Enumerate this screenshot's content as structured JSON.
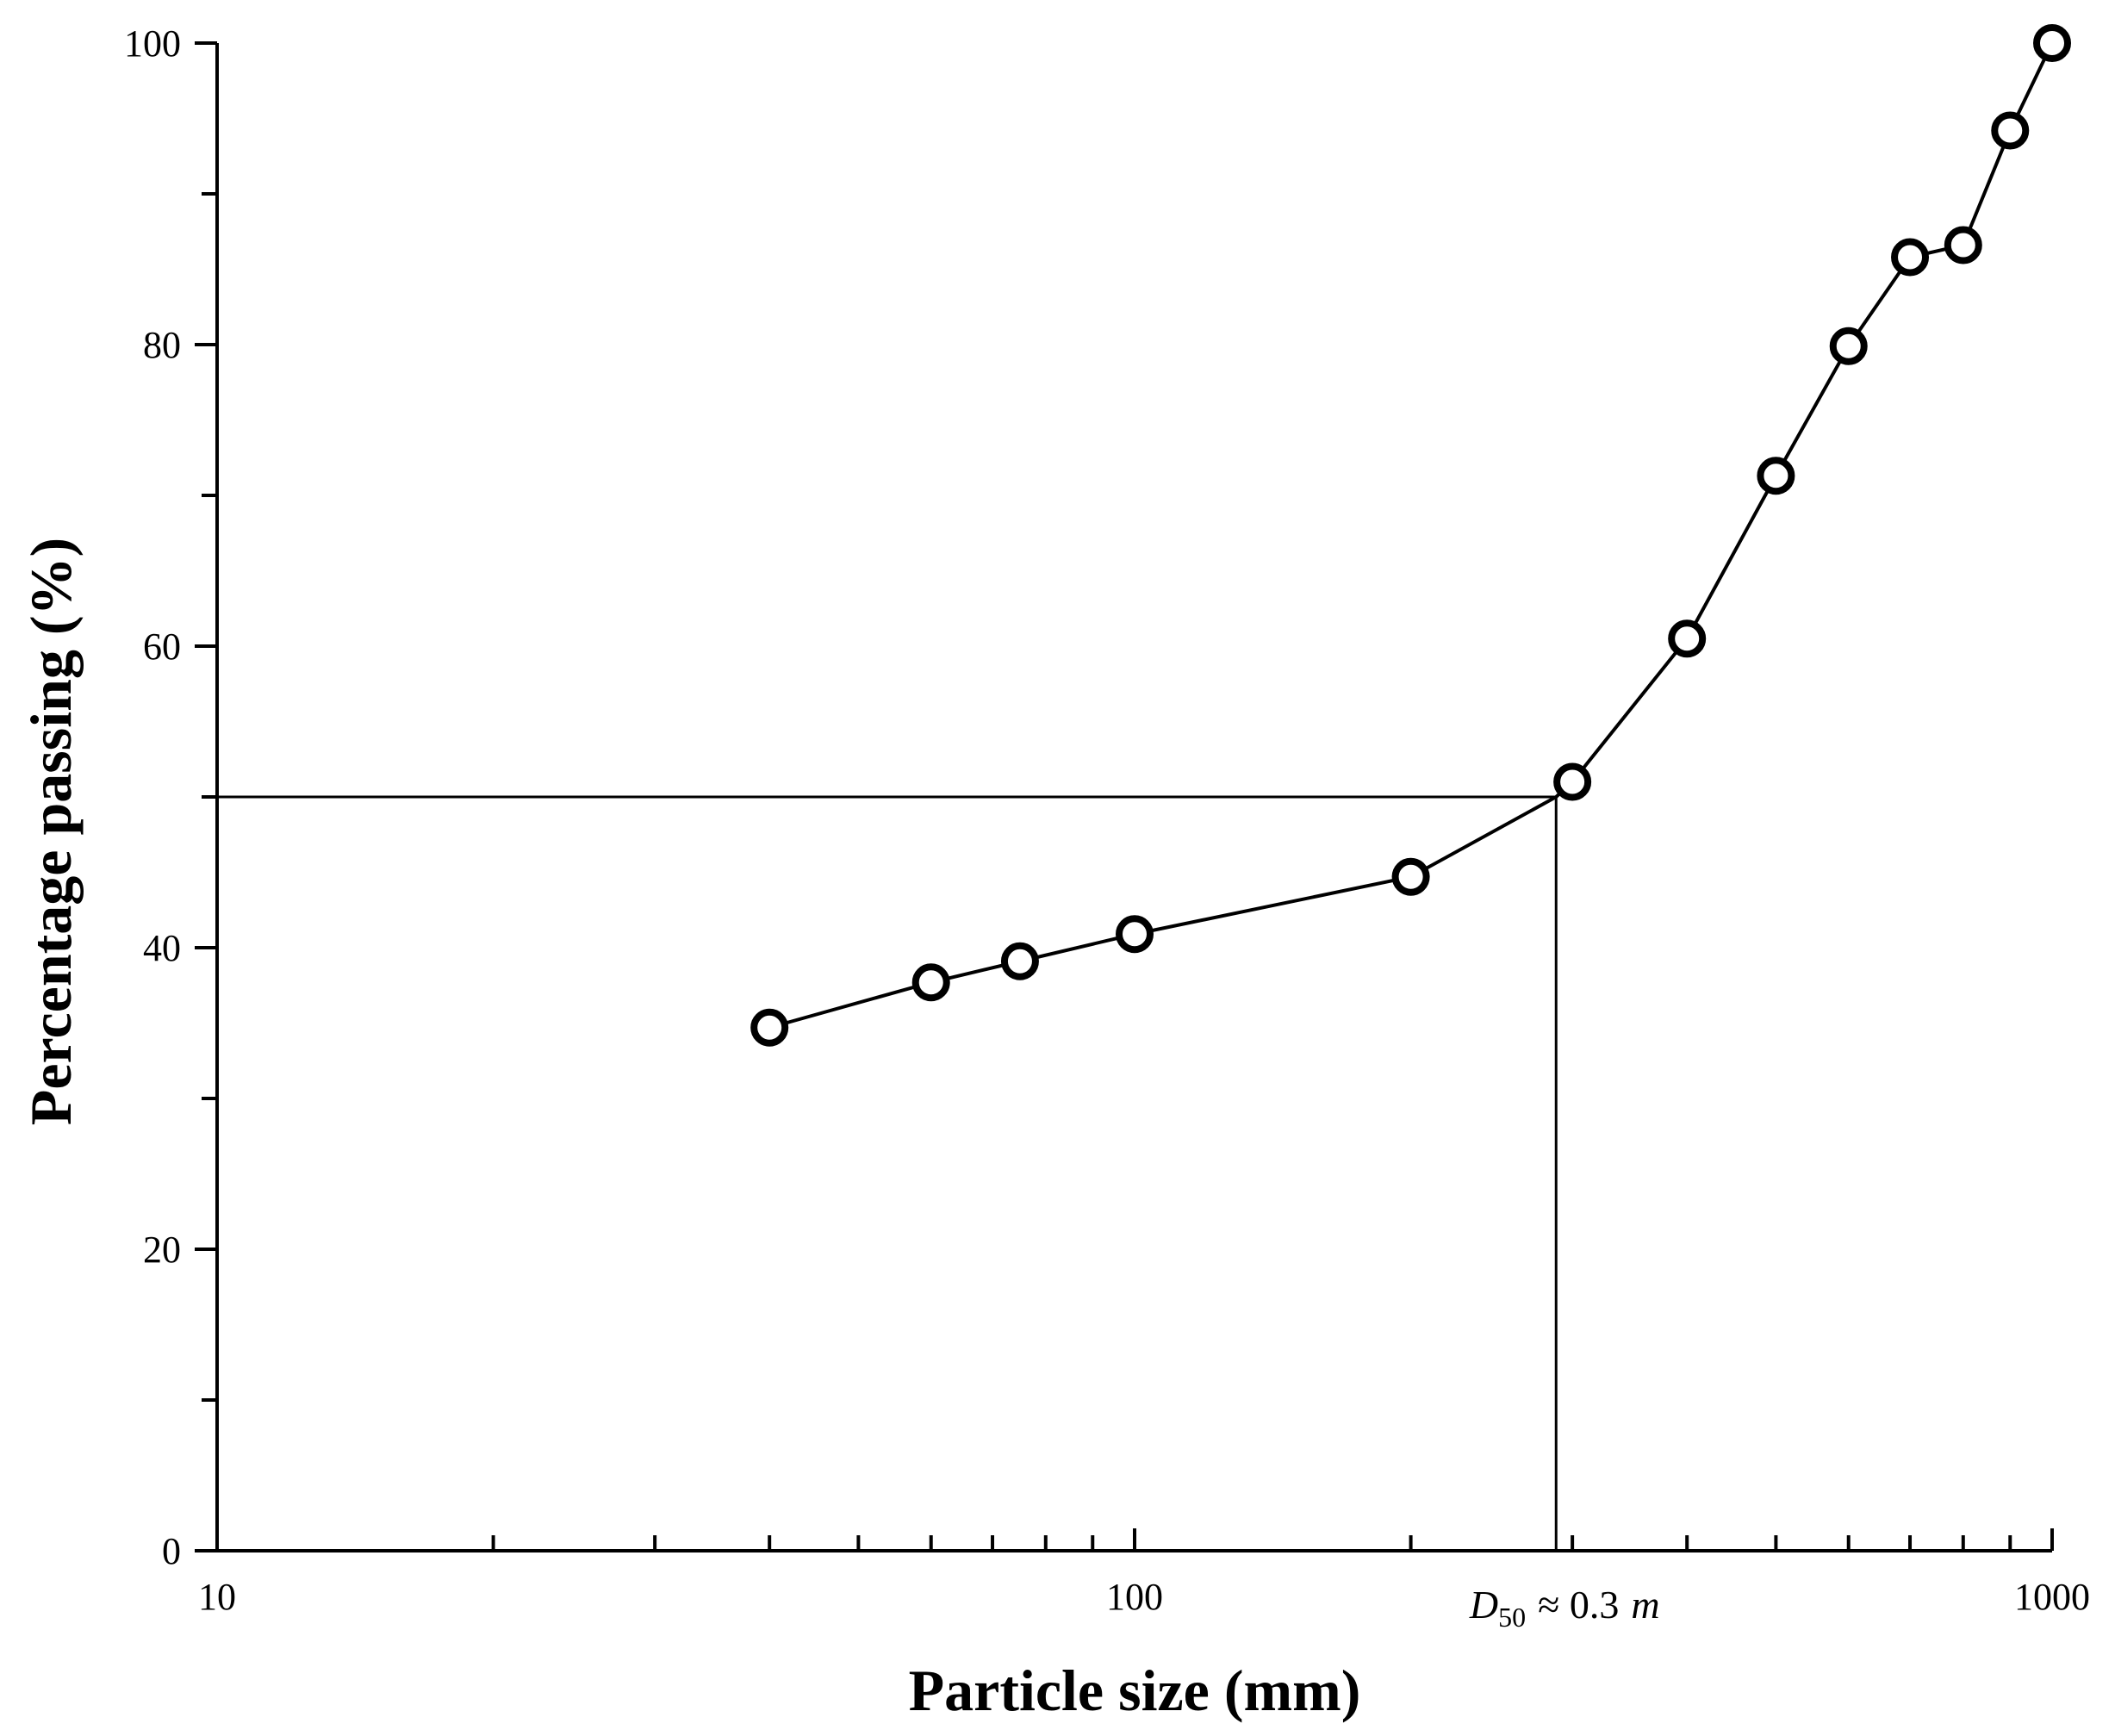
{
  "chart_data": {
    "type": "line",
    "title": "",
    "xlabel": "Particle size (mm)",
    "ylabel": "Percentage passing (%)",
    "x_scale": "log",
    "xlim": [
      10,
      1000
    ],
    "ylim": [
      0,
      100
    ],
    "x_tick_labels": [
      "10",
      "100",
      "1000"
    ],
    "x_tick_values": [
      10,
      100,
      1000
    ],
    "y_tick_labels": [
      "0",
      "20",
      "40",
      "60",
      "80",
      "100"
    ],
    "y_tick_values": [
      0,
      20,
      40,
      60,
      80,
      100
    ],
    "grid": false,
    "series": [
      {
        "marker": "open-circle",
        "x": [
          40,
          60,
          75,
          100,
          200,
          300,
          400,
          500,
          600,
          700,
          800,
          900,
          1000
        ],
        "y": [
          34.7,
          37.7,
          39.1,
          40.9,
          44.7,
          51.0,
          60.5,
          71.3,
          79.9,
          85.8,
          86.6,
          94.2,
          100
        ]
      }
    ],
    "reference_lines": {
      "d50_x": 288,
      "d50_y": 50
    },
    "annotation": {
      "prefix": "D",
      "subscript": "50",
      "suffix": "≈ 0.3",
      "unit": "m"
    }
  }
}
